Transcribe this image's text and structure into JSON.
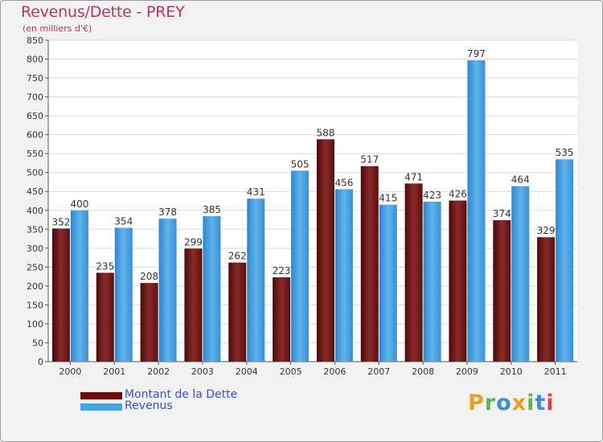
{
  "title": "Revenus/Dette - PREY",
  "subtitle": "(en milliers d'€)",
  "chart_data": {
    "type": "bar",
    "categories": [
      "2000",
      "2001",
      "2002",
      "2003",
      "2004",
      "2005",
      "2006",
      "2007",
      "2008",
      "2009",
      "2010",
      "2011"
    ],
    "series": [
      {
        "name": "Montant de la Dette",
        "color": "#7a1f1f",
        "values": [
          352,
          235,
          208,
          299,
          262,
          223,
          588,
          517,
          471,
          426,
          374,
          329
        ]
      },
      {
        "name": "Revenus",
        "color": "#4aa3e3",
        "values": [
          400,
          354,
          378,
          385,
          431,
          505,
          456,
          415,
          423,
          797,
          464,
          535
        ]
      }
    ],
    "ylim": [
      0,
      850
    ],
    "yticks": [
      0,
      50,
      100,
      150,
      200,
      250,
      300,
      350,
      400,
      450,
      500,
      550,
      600,
      650,
      700,
      750,
      800,
      850
    ],
    "grid": true,
    "legend_position": "bottom-left"
  },
  "legend": [
    {
      "label": "Montant de la Dette",
      "color": "#6b0f0f"
    },
    {
      "label": "Revenus",
      "color": "#4aa3e3"
    }
  ],
  "logo": {
    "letters": [
      "P",
      "r",
      "o",
      "x",
      "i",
      "t",
      "i"
    ],
    "colors": [
      "#e8a020",
      "#5cb84a",
      "#3a8fd8",
      "#e8a020",
      "#5cb84a",
      "#3a8fd8",
      "#e04040"
    ]
  }
}
